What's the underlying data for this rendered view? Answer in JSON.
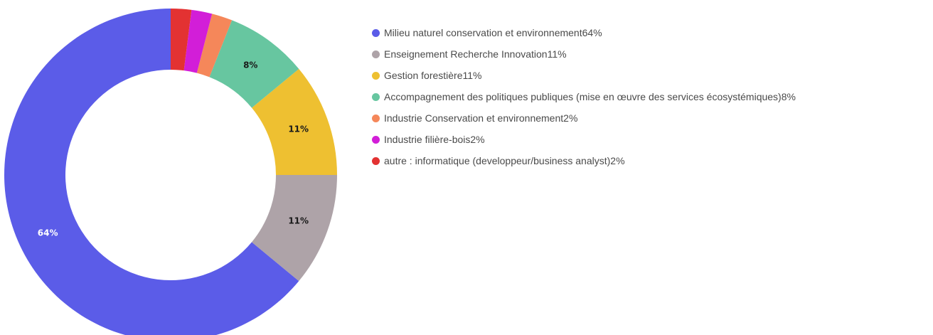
{
  "chart_data": {
    "type": "pie",
    "variant": "donut",
    "legend_position": "right",
    "slices": [
      {
        "label": "Milieu naturel conservation et environnement",
        "percent_label": "64%",
        "value": 64,
        "color": "#5b5ce8",
        "label_color": "#ffffff",
        "show_label": true
      },
      {
        "label": "Enseignement Recherche Innovation",
        "percent_label": "11%",
        "value": 11,
        "color": "#aea3a8",
        "label_color": "#1a1a1a",
        "show_label": true
      },
      {
        "label": "Gestion forestière",
        "percent_label": "11%",
        "value": 11,
        "color": "#eec031",
        "label_color": "#1a1a1a",
        "show_label": true
      },
      {
        "label": "Accompagnement des politiques publiques (mise en œuvre des services écosystémiques)",
        "percent_label": "8%",
        "value": 8,
        "color": "#67c6a0",
        "label_color": "#1a1a1a",
        "show_label": true
      },
      {
        "label": "Industrie Conservation et environnement",
        "percent_label": "2%",
        "value": 2,
        "color": "#f5875a",
        "label_color": "#1a1a1a",
        "show_label": false
      },
      {
        "label": "Industrie filière-bois",
        "percent_label": "2%",
        "value": 2,
        "color": "#d21ed8",
        "label_color": "#1a1a1a",
        "show_label": false
      },
      {
        "label": "autre : informatique (developpeur/business analyst)",
        "percent_label": "2%",
        "value": 2,
        "color": "#e33232",
        "label_color": "#1a1a1a",
        "show_label": false
      }
    ]
  }
}
